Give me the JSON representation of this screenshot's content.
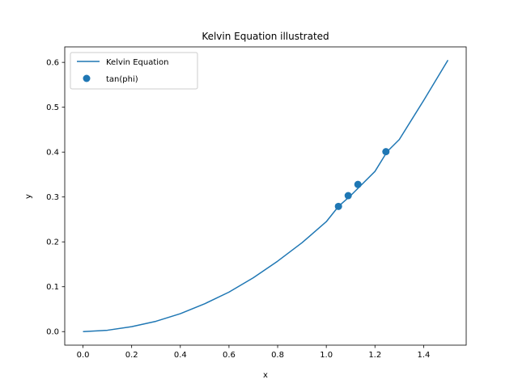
{
  "chart_data": {
    "type": "line",
    "title": "Kelvin Equation illustrated",
    "xlabel": "x",
    "ylabel": "y",
    "xlim": [
      -0.075,
      1.575
    ],
    "ylim": [
      -0.0302,
      0.6345
    ],
    "xticks": [
      0.0,
      0.2,
      0.4,
      0.6,
      0.8,
      1.0,
      1.2,
      1.4
    ],
    "xtick_labels": [
      "0.0",
      "0.2",
      "0.4",
      "0.6",
      "0.8",
      "1.0",
      "1.2",
      "1.4"
    ],
    "yticks": [
      0.0,
      0.1,
      0.2,
      0.3,
      0.4,
      0.5,
      0.6
    ],
    "ytick_labels": [
      "0.0",
      "0.1",
      "0.2",
      "0.3",
      "0.4",
      "0.5",
      "0.6"
    ],
    "grid": false,
    "legend_position": "upper-left",
    "series": [
      {
        "name": "Kelvin Equation",
        "kind": "line",
        "color": "#1f77b4",
        "x": [
          0.0,
          0.1,
          0.2,
          0.3,
          0.4,
          0.5,
          0.6,
          0.7,
          0.8,
          0.9,
          1.0,
          1.05,
          1.1,
          1.2,
          1.25,
          1.3,
          1.4,
          1.5
        ],
        "y": [
          0.0,
          0.003,
          0.011,
          0.023,
          0.04,
          0.062,
          0.088,
          0.12,
          0.157,
          0.198,
          0.245,
          0.279,
          0.303,
          0.357,
          0.401,
          0.428,
          0.515,
          0.605
        ]
      },
      {
        "name": "tan(phi)",
        "kind": "scatter",
        "color": "#1f77b4",
        "x": [
          1.05,
          1.09,
          1.13,
          1.245
        ],
        "y": [
          0.279,
          0.303,
          0.328,
          0.401
        ]
      }
    ]
  }
}
